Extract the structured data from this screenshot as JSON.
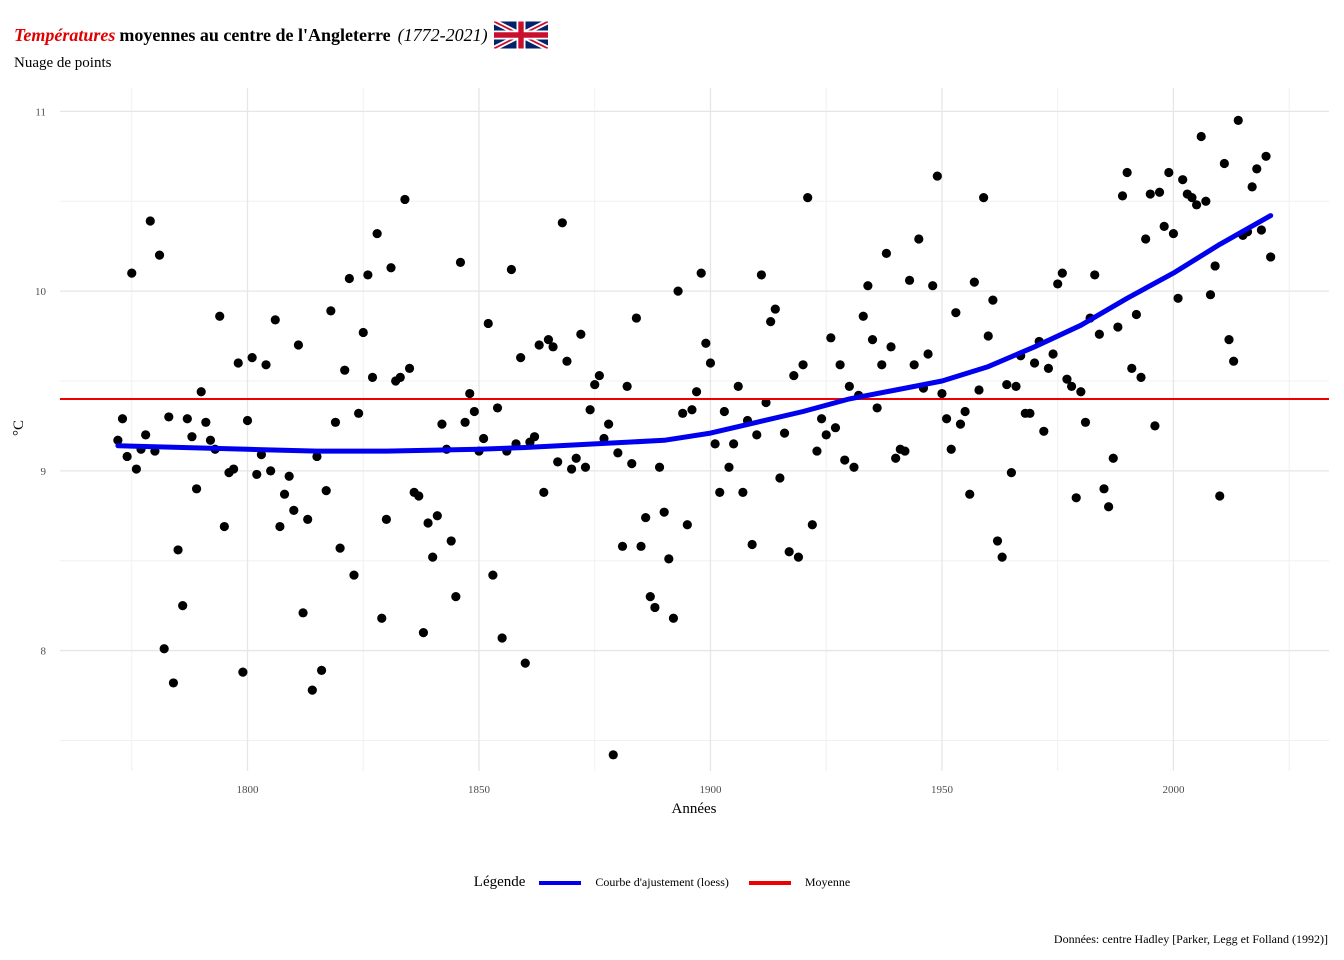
{
  "title": {
    "part1": "Températures",
    "part2": "moyennes au centre de l'Angleterre",
    "part3": "(1772-2021)"
  },
  "subtitle": "Nuage de points",
  "caption": "Données: centre Hadley [Parker, Legg et Folland (1992)]",
  "legend": {
    "title": "Légende",
    "items": [
      {
        "label": "Courbe d'ajustement (loess)",
        "color": "#0000ee"
      },
      {
        "label": "Moyenne",
        "color": "#ee0000"
      }
    ]
  },
  "chart_data": {
    "type": "scatter",
    "xlabel": "Années",
    "ylabel": "°C",
    "xlim": [
      1759.5,
      2033.6
    ],
    "ylim": [
      7.33,
      11.13
    ],
    "x_ticks": [
      1800,
      1850,
      1900,
      1950,
      2000
    ],
    "y_ticks": [
      8,
      9,
      10,
      11
    ],
    "grid": true,
    "legend_position": "bottom",
    "mean": 9.4,
    "points": [
      [
        1772,
        9.17
      ],
      [
        1773,
        9.29
      ],
      [
        1774,
        9.08
      ],
      [
        1775,
        10.1
      ],
      [
        1776,
        9.01
      ],
      [
        1777,
        9.12
      ],
      [
        1778,
        9.2
      ],
      [
        1779,
        10.39
      ],
      [
        1780,
        9.11
      ],
      [
        1781,
        10.2
      ],
      [
        1782,
        8.01
      ],
      [
        1783,
        9.3
      ],
      [
        1784,
        7.82
      ],
      [
        1785,
        8.56
      ],
      [
        1786,
        8.25
      ],
      [
        1787,
        9.29
      ],
      [
        1788,
        9.19
      ],
      [
        1789,
        8.9
      ],
      [
        1790,
        9.44
      ],
      [
        1791,
        9.27
      ],
      [
        1792,
        9.17
      ],
      [
        1793,
        9.12
      ],
      [
        1794,
        9.86
      ],
      [
        1795,
        8.69
      ],
      [
        1796,
        8.99
      ],
      [
        1797,
        9.01
      ],
      [
        1798,
        9.6
      ],
      [
        1799,
        7.88
      ],
      [
        1800,
        9.28
      ],
      [
        1801,
        9.63
      ],
      [
        1802,
        8.98
      ],
      [
        1803,
        9.09
      ],
      [
        1804,
        9.59
      ],
      [
        1805,
        9.0
      ],
      [
        1806,
        9.84
      ],
      [
        1807,
        8.69
      ],
      [
        1808,
        8.87
      ],
      [
        1809,
        8.97
      ],
      [
        1810,
        8.78
      ],
      [
        1811,
        9.7
      ],
      [
        1812,
        8.21
      ],
      [
        1813,
        8.73
      ],
      [
        1814,
        7.78
      ],
      [
        1815,
        9.08
      ],
      [
        1816,
        7.89
      ],
      [
        1817,
        8.89
      ],
      [
        1818,
        9.89
      ],
      [
        1819,
        9.27
      ],
      [
        1820,
        8.57
      ],
      [
        1821,
        9.56
      ],
      [
        1822,
        10.07
      ],
      [
        1823,
        8.42
      ],
      [
        1824,
        9.32
      ],
      [
        1825,
        9.77
      ],
      [
        1826,
        10.09
      ],
      [
        1827,
        9.52
      ],
      [
        1828,
        10.32
      ],
      [
        1829,
        8.18
      ],
      [
        1830,
        8.73
      ],
      [
        1831,
        10.13
      ],
      [
        1832,
        9.5
      ],
      [
        1833,
        9.52
      ],
      [
        1834,
        10.51
      ],
      [
        1835,
        9.57
      ],
      [
        1836,
        8.88
      ],
      [
        1837,
        8.86
      ],
      [
        1838,
        8.1
      ],
      [
        1839,
        8.71
      ],
      [
        1840,
        8.52
      ],
      [
        1841,
        8.75
      ],
      [
        1842,
        9.26
      ],
      [
        1843,
        9.12
      ],
      [
        1844,
        8.61
      ],
      [
        1845,
        8.3
      ],
      [
        1846,
        10.16
      ],
      [
        1847,
        9.27
      ],
      [
        1848,
        9.43
      ],
      [
        1849,
        9.33
      ],
      [
        1850,
        9.11
      ],
      [
        1851,
        9.18
      ],
      [
        1852,
        9.82
      ],
      [
        1853,
        8.42
      ],
      [
        1854,
        9.35
      ],
      [
        1855,
        8.07
      ],
      [
        1856,
        9.11
      ],
      [
        1857,
        10.12
      ],
      [
        1858,
        9.15
      ],
      [
        1859,
        9.63
      ],
      [
        1860,
        7.93
      ],
      [
        1861,
        9.16
      ],
      [
        1862,
        9.19
      ],
      [
        1863,
        9.7
      ],
      [
        1864,
        8.88
      ],
      [
        1865,
        9.73
      ],
      [
        1866,
        9.69
      ],
      [
        1867,
        9.05
      ],
      [
        1868,
        10.38
      ],
      [
        1869,
        9.61
      ],
      [
        1870,
        9.01
      ],
      [
        1871,
        9.07
      ],
      [
        1872,
        9.76
      ],
      [
        1873,
        9.02
      ],
      [
        1874,
        9.34
      ],
      [
        1875,
        9.48
      ],
      [
        1876,
        9.53
      ],
      [
        1877,
        9.18
      ],
      [
        1878,
        9.26
      ],
      [
        1879,
        7.42
      ],
      [
        1880,
        9.1
      ],
      [
        1881,
        8.58
      ],
      [
        1882,
        9.47
      ],
      [
        1883,
        9.04
      ],
      [
        1884,
        9.85
      ],
      [
        1885,
        8.58
      ],
      [
        1886,
        8.74
      ],
      [
        1887,
        8.3
      ],
      [
        1888,
        8.24
      ],
      [
        1889,
        9.02
      ],
      [
        1890,
        8.77
      ],
      [
        1891,
        8.51
      ],
      [
        1892,
        8.18
      ],
      [
        1893,
        10.0
      ],
      [
        1894,
        9.32
      ],
      [
        1895,
        8.7
      ],
      [
        1896,
        9.34
      ],
      [
        1897,
        9.44
      ],
      [
        1898,
        10.1
      ],
      [
        1899,
        9.71
      ],
      [
        1900,
        9.6
      ],
      [
        1901,
        9.15
      ],
      [
        1902,
        8.88
      ],
      [
        1903,
        9.33
      ],
      [
        1904,
        9.02
      ],
      [
        1905,
        9.15
      ],
      [
        1906,
        9.47
      ],
      [
        1907,
        8.88
      ],
      [
        1908,
        9.28
      ],
      [
        1909,
        8.59
      ],
      [
        1910,
        9.2
      ],
      [
        1911,
        10.09
      ],
      [
        1912,
        9.38
      ],
      [
        1913,
        9.83
      ],
      [
        1914,
        9.9
      ],
      [
        1915,
        8.96
      ],
      [
        1916,
        9.21
      ],
      [
        1917,
        8.55
      ],
      [
        1918,
        9.53
      ],
      [
        1919,
        8.52
      ],
      [
        1920,
        9.59
      ],
      [
        1921,
        10.52
      ],
      [
        1922,
        8.7
      ],
      [
        1923,
        9.11
      ],
      [
        1924,
        9.29
      ],
      [
        1925,
        9.2
      ],
      [
        1926,
        9.74
      ],
      [
        1927,
        9.24
      ],
      [
        1928,
        9.59
      ],
      [
        1929,
        9.06
      ],
      [
        1930,
        9.47
      ],
      [
        1931,
        9.02
      ],
      [
        1932,
        9.42
      ],
      [
        1933,
        9.86
      ],
      [
        1934,
        10.03
      ],
      [
        1935,
        9.73
      ],
      [
        1936,
        9.35
      ],
      [
        1937,
        9.59
      ],
      [
        1938,
        10.21
      ],
      [
        1939,
        9.69
      ],
      [
        1940,
        9.07
      ],
      [
        1941,
        9.12
      ],
      [
        1942,
        9.11
      ],
      [
        1943,
        10.06
      ],
      [
        1944,
        9.59
      ],
      [
        1945,
        10.29
      ],
      [
        1946,
        9.46
      ],
      [
        1947,
        9.65
      ],
      [
        1948,
        10.03
      ],
      [
        1949,
        10.64
      ],
      [
        1950,
        9.43
      ],
      [
        1951,
        9.29
      ],
      [
        1952,
        9.12
      ],
      [
        1953,
        9.88
      ],
      [
        1954,
        9.26
      ],
      [
        1955,
        9.33
      ],
      [
        1956,
        8.87
      ],
      [
        1957,
        10.05
      ],
      [
        1958,
        9.45
      ],
      [
        1959,
        10.52
      ],
      [
        1960,
        9.75
      ],
      [
        1961,
        9.95
      ],
      [
        1962,
        8.61
      ],
      [
        1963,
        8.52
      ],
      [
        1964,
        9.48
      ],
      [
        1965,
        8.99
      ],
      [
        1966,
        9.47
      ],
      [
        1967,
        9.64
      ],
      [
        1968,
        9.32
      ],
      [
        1969,
        9.32
      ],
      [
        1970,
        9.6
      ],
      [
        1971,
        9.72
      ],
      [
        1972,
        9.22
      ],
      [
        1973,
        9.57
      ],
      [
        1974,
        9.65
      ],
      [
        1975,
        10.04
      ],
      [
        1976,
        10.1
      ],
      [
        1977,
        9.51
      ],
      [
        1978,
        9.47
      ],
      [
        1979,
        8.85
      ],
      [
        1980,
        9.44
      ],
      [
        1981,
        9.27
      ],
      [
        1982,
        9.85
      ],
      [
        1983,
        10.09
      ],
      [
        1984,
        9.76
      ],
      [
        1985,
        8.9
      ],
      [
        1986,
        8.8
      ],
      [
        1987,
        9.07
      ],
      [
        1988,
        9.8
      ],
      [
        1989,
        10.53
      ],
      [
        1990,
        10.66
      ],
      [
        1991,
        9.57
      ],
      [
        1992,
        9.87
      ],
      [
        1993,
        9.52
      ],
      [
        1994,
        10.29
      ],
      [
        1995,
        10.54
      ],
      [
        1996,
        9.25
      ],
      [
        1997,
        10.55
      ],
      [
        1998,
        10.36
      ],
      [
        1999,
        10.66
      ],
      [
        2000,
        10.32
      ],
      [
        2001,
        9.96
      ],
      [
        2002,
        10.62
      ],
      [
        2003,
        10.54
      ],
      [
        2004,
        10.52
      ],
      [
        2005,
        10.48
      ],
      [
        2006,
        10.86
      ],
      [
        2007,
        10.5
      ],
      [
        2008,
        9.98
      ],
      [
        2009,
        10.14
      ],
      [
        2010,
        8.86
      ],
      [
        2011,
        10.71
      ],
      [
        2012,
        9.73
      ],
      [
        2013,
        9.61
      ],
      [
        2014,
        10.95
      ],
      [
        2015,
        10.31
      ],
      [
        2016,
        10.33
      ],
      [
        2017,
        10.58
      ],
      [
        2018,
        10.68
      ],
      [
        2019,
        10.34
      ],
      [
        2020,
        10.75
      ],
      [
        2021,
        10.19
      ]
    ],
    "loess": [
      [
        1772,
        9.14
      ],
      [
        1800,
        9.12
      ],
      [
        1815,
        9.11
      ],
      [
        1830,
        9.11
      ],
      [
        1850,
        9.12
      ],
      [
        1860,
        9.13
      ],
      [
        1875,
        9.15
      ],
      [
        1890,
        9.17
      ],
      [
        1900,
        9.21
      ],
      [
        1910,
        9.27
      ],
      [
        1920,
        9.33
      ],
      [
        1930,
        9.4
      ],
      [
        1940,
        9.45
      ],
      [
        1950,
        9.5
      ],
      [
        1960,
        9.58
      ],
      [
        1970,
        9.69
      ],
      [
        1980,
        9.81
      ],
      [
        1990,
        9.96
      ],
      [
        2000,
        10.1
      ],
      [
        2010,
        10.26
      ],
      [
        2021,
        10.42
      ]
    ]
  }
}
